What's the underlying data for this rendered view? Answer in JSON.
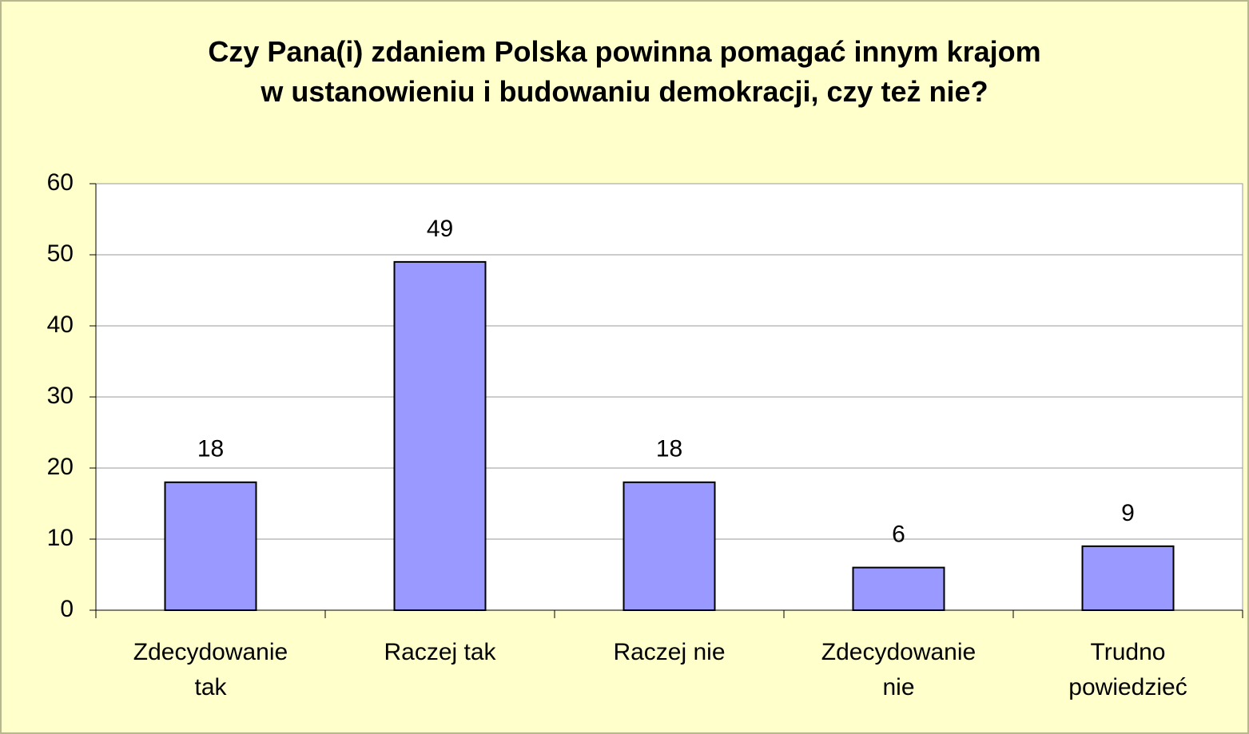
{
  "chart_data": {
    "type": "bar",
    "title": "Czy Pana(i) zdaniem Polska powinna pomagać innym krajom\nw ustanowieniu i budowaniu demokracji, czy też nie?",
    "categories": [
      "Zdecydowanie\ntak",
      "Raczej tak",
      "Raczej nie",
      "Zdecydowanie\nnie",
      "Trudno\npowiedzieć"
    ],
    "values": [
      18,
      49,
      18,
      6,
      9
    ],
    "color": "#9999ff",
    "ylim": [
      0,
      60
    ],
    "yticks": [
      0,
      10,
      20,
      30,
      40,
      50,
      60
    ],
    "grid": true
  }
}
